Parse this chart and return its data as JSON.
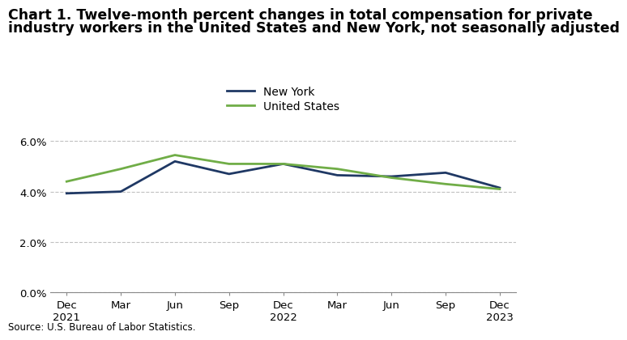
{
  "title_line1": "Chart 1. Twelve-month percent changes in total compensation for private",
  "title_line2": "industry workers in the United States and New York, not seasonally adjusted",
  "source": "Source: U.S. Bureau of Labor Statistics.",
  "x_labels": [
    "Dec\n2021",
    "Mar",
    "Jun",
    "Sep",
    "Dec\n2022",
    "Mar",
    "Jun",
    "Sep",
    "Dec\n2023"
  ],
  "new_york": [
    0.0393,
    0.04,
    0.052,
    0.047,
    0.051,
    0.0465,
    0.046,
    0.0475,
    0.0415
  ],
  "united_states": [
    0.044,
    0.049,
    0.0545,
    0.051,
    0.051,
    0.049,
    0.0455,
    0.043,
    0.041
  ],
  "ny_color": "#1F3864",
  "us_color": "#70AD47",
  "ylim_min": 0.0,
  "ylim_max": 0.068,
  "yticks": [
    0.0,
    0.02,
    0.04,
    0.06
  ],
  "ytick_labels": [
    "0.0%",
    "2.0%",
    "4.0%",
    "6.0%"
  ],
  "line_width": 2.0,
  "legend_labels": [
    "New York",
    "United States"
  ],
  "background_color": "#ffffff",
  "grid_color": "#c0c0c0",
  "title_fontsize": 12.5,
  "legend_fontsize": 10,
  "tick_fontsize": 9.5,
  "source_fontsize": 8.5
}
